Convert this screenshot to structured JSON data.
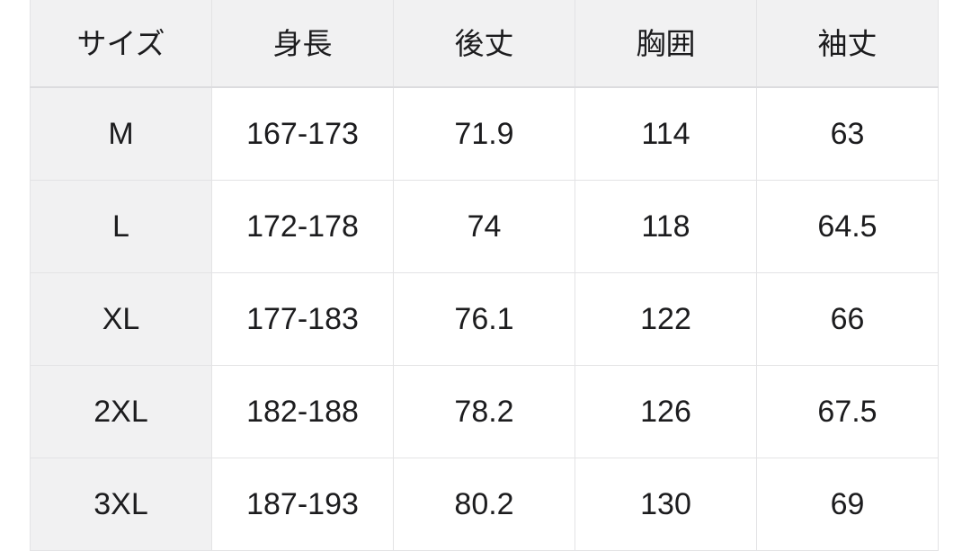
{
  "colors": {
    "page_background": "#ffffff",
    "header_background": "#f1f1f2",
    "row_label_background": "#f1f1f2",
    "border": "#e3e3e5",
    "header_bottom_border": "#dcdcdf",
    "text": "#1c1c1e"
  },
  "table": {
    "columns": [
      "サイズ",
      "身長",
      "後丈",
      "胸囲",
      "袖丈"
    ],
    "rows": [
      [
        "M",
        "167-173",
        "71.9",
        "114",
        "63"
      ],
      [
        "L",
        "172-178",
        "74",
        "118",
        "64.5"
      ],
      [
        "XL",
        "177-183",
        "76.1",
        "122",
        "66"
      ],
      [
        "2XL",
        "182-188",
        "78.2",
        "126",
        "67.5"
      ],
      [
        "3XL",
        "187-193",
        "80.2",
        "130",
        "69"
      ]
    ]
  },
  "chart_data": {
    "type": "table",
    "title": "",
    "columns": [
      "サイズ",
      "身長",
      "後丈",
      "胸囲",
      "袖丈"
    ],
    "rows": [
      {
        "size": "M",
        "height": "167-173",
        "back_length": 71.9,
        "chest": 114,
        "sleeve_length": 63
      },
      {
        "size": "L",
        "height": "172-178",
        "back_length": 74,
        "chest": 118,
        "sleeve_length": 64.5
      },
      {
        "size": "XL",
        "height": "177-183",
        "back_length": 76.1,
        "chest": 122,
        "sleeve_length": 66
      },
      {
        "size": "2XL",
        "height": "182-188",
        "back_length": 78.2,
        "chest": 126,
        "sleeve_length": 67.5
      },
      {
        "size": "3XL",
        "height": "187-193",
        "back_length": 80.2,
        "chest": 130,
        "sleeve_length": 69
      }
    ]
  }
}
